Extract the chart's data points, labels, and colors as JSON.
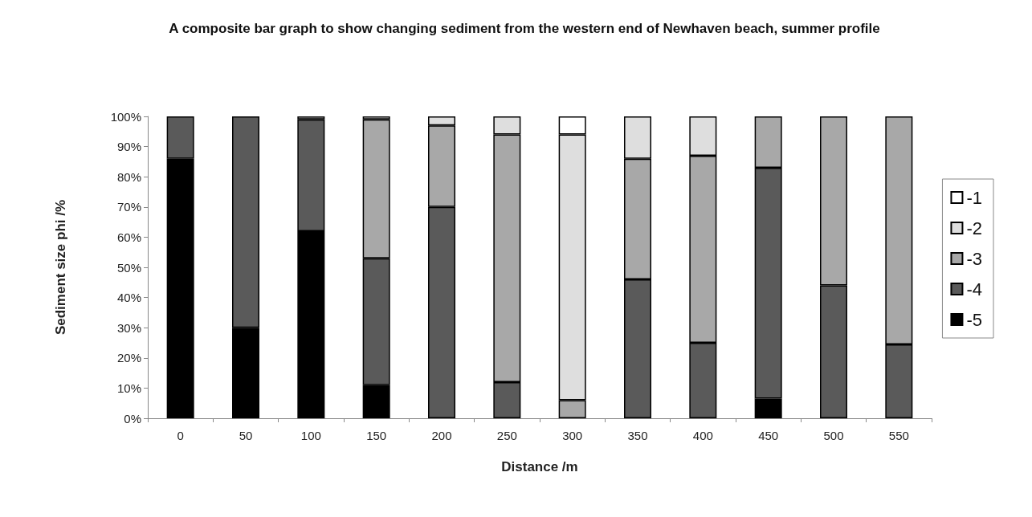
{
  "chart_data": {
    "type": "bar",
    "title": "A composite bar graph to show changing sediment from the western end of Newhaven beach, summer profile",
    "xlabel": "Distance /m",
    "ylabel": "Sediment size phi /%",
    "categories": [
      "0",
      "50",
      "100",
      "150",
      "200",
      "250",
      "300",
      "350",
      "400",
      "450",
      "500",
      "550"
    ],
    "stacked": true,
    "ylim": [
      0,
      100
    ],
    "yticks": [
      {
        "value": 0,
        "label": "0%"
      },
      {
        "value": 10,
        "label": "10%"
      },
      {
        "value": 20,
        "label": "20%"
      },
      {
        "value": 30,
        "label": "30%"
      },
      {
        "value": 40,
        "label": "40%"
      },
      {
        "value": 50,
        "label": "50%"
      },
      {
        "value": 60,
        "label": "60%"
      },
      {
        "value": 70,
        "label": "70%"
      },
      {
        "value": 80,
        "label": "80%"
      },
      {
        "value": 90,
        "label": "90%"
      },
      {
        "value": 100,
        "label": "100%"
      }
    ],
    "grid": false,
    "legend": "right",
    "series": [
      {
        "name": "-5",
        "color": "#000000",
        "values": [
          86,
          30,
          62,
          11,
          0,
          0,
          0,
          0,
          0,
          6.5,
          0,
          0
        ]
      },
      {
        "name": "-4",
        "color": "#5a5a5a",
        "values": [
          14,
          70,
          37,
          42,
          70,
          12,
          0,
          46,
          25,
          76.5,
          44,
          24.5
        ]
      },
      {
        "name": "-3",
        "color": "#a8a8a8",
        "values": [
          0,
          0,
          1,
          46,
          27,
          82,
          6,
          40,
          62,
          17,
          56,
          75.5
        ]
      },
      {
        "name": "-2",
        "color": "#dedede",
        "values": [
          0,
          0,
          0,
          1,
          3,
          6,
          88,
          14,
          13,
          0,
          0,
          0
        ]
      },
      {
        "name": "-1",
        "color": "#ffffff",
        "values": [
          0,
          0,
          0,
          0,
          0,
          0,
          6,
          0,
          0,
          0,
          0,
          0
        ]
      }
    ]
  }
}
